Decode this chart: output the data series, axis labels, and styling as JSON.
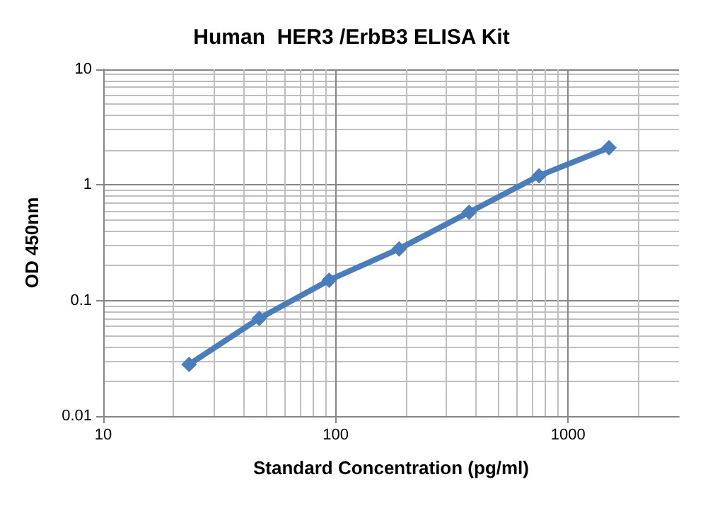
{
  "chart_data": {
    "type": "line",
    "title": "Human  HER3 /ErbB3 ELISA Kit",
    "xlabel": "Standard Concentration (pg/ml)",
    "ylabel": "OD 450nm",
    "x": [
      23.4,
      46.9,
      93.75,
      187.5,
      375,
      750,
      1500
    ],
    "series": [
      {
        "color": "#4a7ebb",
        "values": [
          0.028,
          0.07,
          0.15,
          0.28,
          0.58,
          1.2,
          2.1
        ]
      }
    ],
    "xlim": [
      10,
      3000
    ],
    "xticks": [
      10,
      100,
      1000
    ],
    "ylim": [
      0.01,
      10
    ],
    "yticks": [
      0.01,
      0.1,
      1,
      10
    ],
    "log": "xy",
    "grid": true,
    "marker": "diamond",
    "line_style": "solid"
  }
}
